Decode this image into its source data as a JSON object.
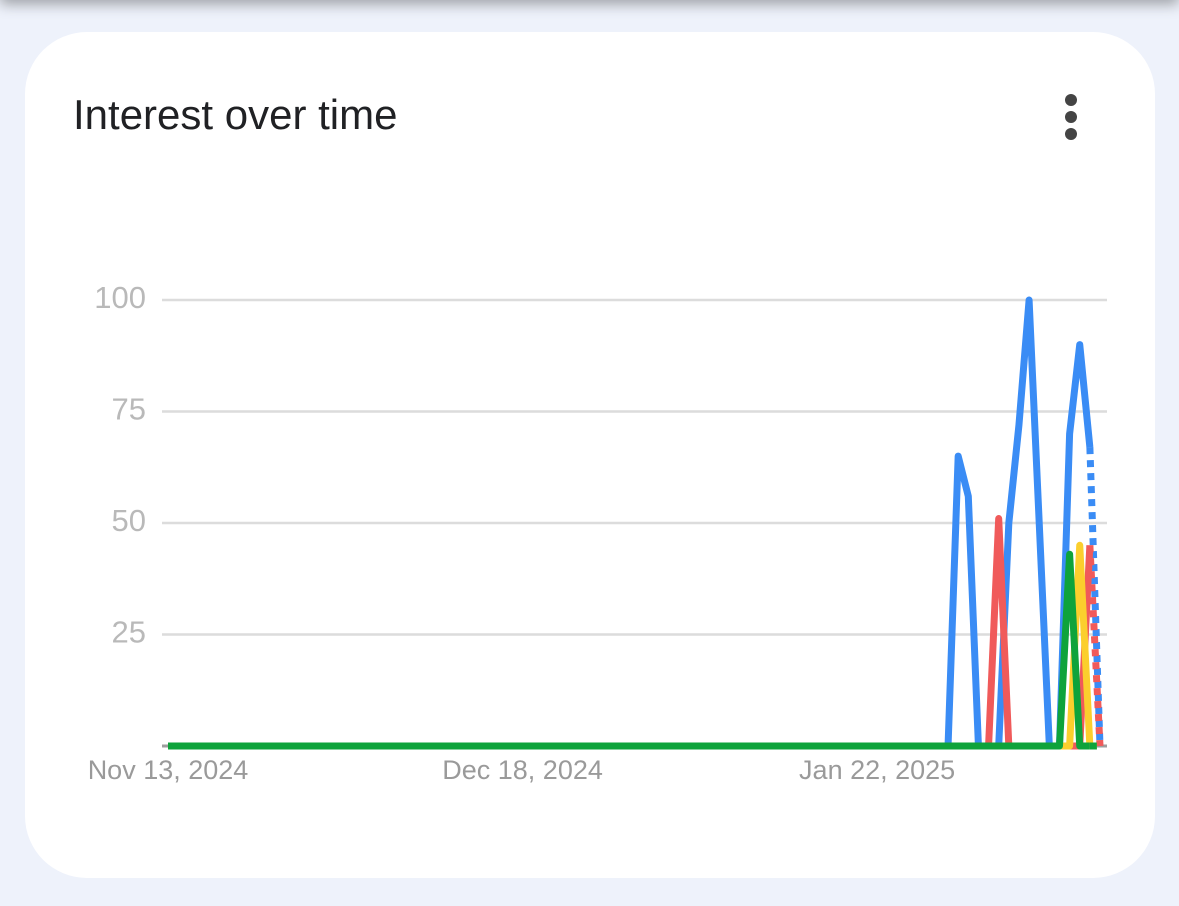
{
  "chart_data": {
    "type": "line",
    "title": "Interest over time",
    "categories": [
      "Nov 13, 2024",
      null,
      null,
      null,
      null,
      null,
      null,
      null,
      null,
      null,
      null,
      null,
      null,
      null,
      null,
      null,
      null,
      null,
      null,
      null,
      null,
      null,
      null,
      null,
      null,
      null,
      null,
      null,
      null,
      null,
      null,
      null,
      null,
      null,
      null,
      "Dec 18, 2024",
      null,
      null,
      null,
      null,
      null,
      null,
      null,
      null,
      null,
      null,
      null,
      null,
      null,
      null,
      null,
      null,
      null,
      null,
      null,
      null,
      null,
      null,
      null,
      null,
      null,
      null,
      null,
      null,
      null,
      null,
      null,
      null,
      null,
      null,
      "Jan 22, 2025",
      null,
      null,
      null,
      null,
      null,
      null,
      null,
      null,
      null,
      null,
      null,
      null,
      null,
      null,
      null,
      null,
      null,
      null,
      null,
      null,
      null,
      null
    ],
    "series": [
      {
        "color": "#3a8cf5",
        "values": [
          0,
          0,
          0,
          0,
          0,
          0,
          0,
          0,
          0,
          0,
          0,
          0,
          0,
          0,
          0,
          0,
          0,
          0,
          0,
          0,
          0,
          0,
          0,
          0,
          0,
          0,
          0,
          0,
          0,
          0,
          0,
          0,
          0,
          0,
          0,
          0,
          0,
          0,
          0,
          0,
          0,
          0,
          0,
          0,
          0,
          0,
          0,
          0,
          0,
          0,
          0,
          0,
          0,
          0,
          0,
          0,
          0,
          0,
          0,
          0,
          0,
          0,
          0,
          0,
          0,
          0,
          0,
          0,
          0,
          0,
          0,
          0,
          0,
          0,
          0,
          0,
          0,
          0,
          65,
          56,
          0,
          0,
          0,
          50,
          72,
          100,
          50,
          0,
          0,
          70,
          90,
          67,
          0
        ]
      },
      {
        "color": "#f05a5a",
        "values": [
          0,
          0,
          0,
          0,
          0,
          0,
          0,
          0,
          0,
          0,
          0,
          0,
          0,
          0,
          0,
          0,
          0,
          0,
          0,
          0,
          0,
          0,
          0,
          0,
          0,
          0,
          0,
          0,
          0,
          0,
          0,
          0,
          0,
          0,
          0,
          0,
          0,
          0,
          0,
          0,
          0,
          0,
          0,
          0,
          0,
          0,
          0,
          0,
          0,
          0,
          0,
          0,
          0,
          0,
          0,
          0,
          0,
          0,
          0,
          0,
          0,
          0,
          0,
          0,
          0,
          0,
          0,
          0,
          0,
          0,
          0,
          0,
          0,
          0,
          0,
          0,
          0,
          0,
          0,
          0,
          0,
          0,
          51,
          0,
          0,
          0,
          0,
          0,
          0,
          0,
          0,
          45,
          0
        ]
      },
      {
        "color": "#fbcf2d",
        "values": [
          0,
          0,
          0,
          0,
          0,
          0,
          0,
          0,
          0,
          0,
          0,
          0,
          0,
          0,
          0,
          0,
          0,
          0,
          0,
          0,
          0,
          0,
          0,
          0,
          0,
          0,
          0,
          0,
          0,
          0,
          0,
          0,
          0,
          0,
          0,
          0,
          0,
          0,
          0,
          0,
          0,
          0,
          0,
          0,
          0,
          0,
          0,
          0,
          0,
          0,
          0,
          0,
          0,
          0,
          0,
          0,
          0,
          0,
          0,
          0,
          0,
          0,
          0,
          0,
          0,
          0,
          0,
          0,
          0,
          0,
          0,
          0,
          0,
          0,
          0,
          0,
          0,
          0,
          0,
          0,
          0,
          0,
          0,
          0,
          0,
          0,
          0,
          0,
          0,
          0,
          45,
          0,
          0
        ]
      },
      {
        "color": "#0ea33b",
        "values": [
          0,
          0,
          0,
          0,
          0,
          0,
          0,
          0,
          0,
          0,
          0,
          0,
          0,
          0,
          0,
          0,
          0,
          0,
          0,
          0,
          0,
          0,
          0,
          0,
          0,
          0,
          0,
          0,
          0,
          0,
          0,
          0,
          0,
          0,
          0,
          0,
          0,
          0,
          0,
          0,
          0,
          0,
          0,
          0,
          0,
          0,
          0,
          0,
          0,
          0,
          0,
          0,
          0,
          0,
          0,
          0,
          0,
          0,
          0,
          0,
          0,
          0,
          0,
          0,
          0,
          0,
          0,
          0,
          0,
          0,
          0,
          0,
          0,
          0,
          0,
          0,
          0,
          0,
          0,
          0,
          0,
          0,
          0,
          0,
          0,
          0,
          0,
          0,
          0,
          43,
          0,
          0,
          0
        ]
      }
    ],
    "ylim": [
      0,
      100
    ],
    "yticks": [
      25,
      50,
      75,
      100
    ],
    "grid": true,
    "dashed_last_segment": true
  }
}
